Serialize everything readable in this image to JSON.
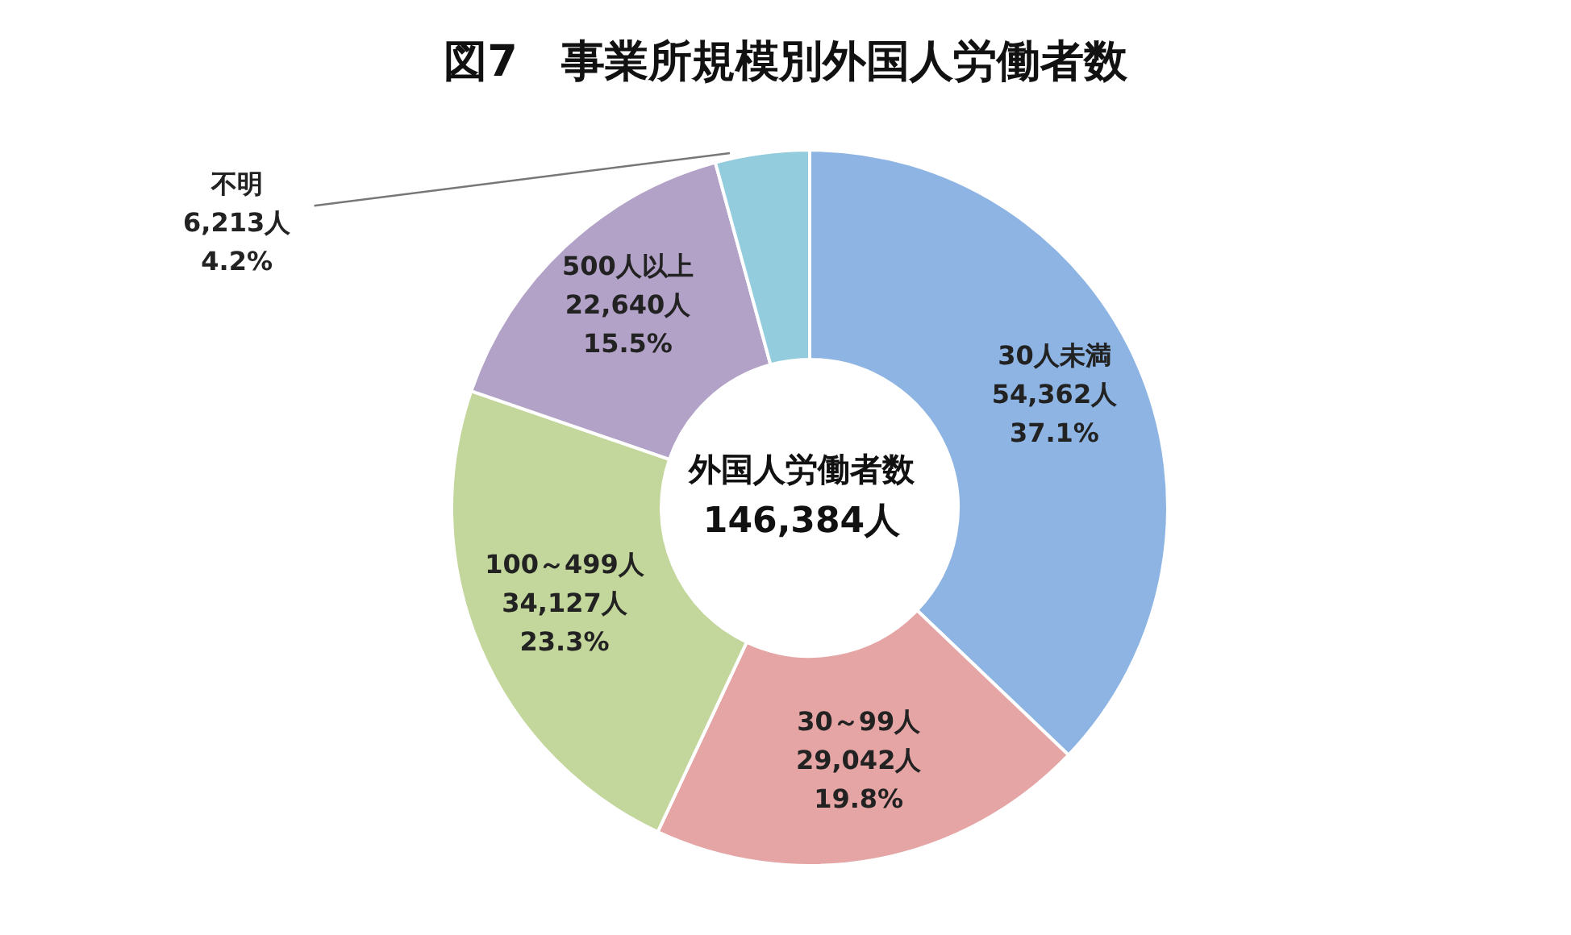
{
  "chart_data": {
    "type": "donut",
    "title": "図7　事業所規模別外国人労働者数",
    "categories": [
      "30人未満",
      "30～99人",
      "100～499人",
      "500人以上",
      "不明"
    ],
    "values": [
      54362,
      29042,
      34127,
      22640,
      6213
    ],
    "value_labels": [
      "54,362人\n37.1%",
      "29,042人\n19.8%",
      "34,127人\n23.3%",
      "22,640人\n15.5%",
      "6,213人\n4.2%"
    ],
    "colors": [
      "#8eb4e3",
      "#e6a5a5",
      "#c3d69b",
      "#b3a2c7",
      "#93cddd"
    ],
    "annotations": [
      "外国人労働者数",
      "146,384人"
    ],
    "legend": false
  }
}
